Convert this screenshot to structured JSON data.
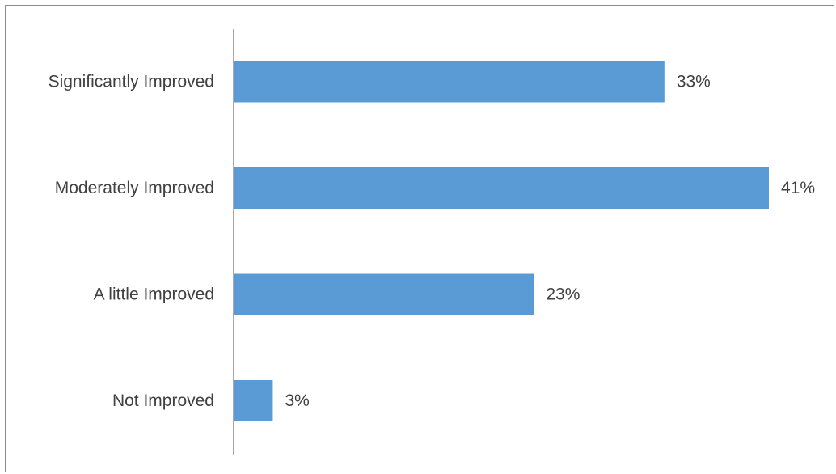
{
  "chart_data": {
    "type": "bar",
    "orientation": "horizontal",
    "categories": [
      "Significantly Improved",
      "Moderately Improved",
      "A little Improved",
      "Not Improved"
    ],
    "values": [
      33,
      41,
      23,
      3
    ],
    "data_labels": [
      "33%",
      "41%",
      "23%",
      "3%"
    ],
    "value_unit": "%",
    "xlim": [
      0,
      41
    ],
    "grid": false,
    "legend": "none",
    "bar_color": "#5b9bd5",
    "axis_color": "#8c8c8c",
    "text_color": "#404040"
  }
}
